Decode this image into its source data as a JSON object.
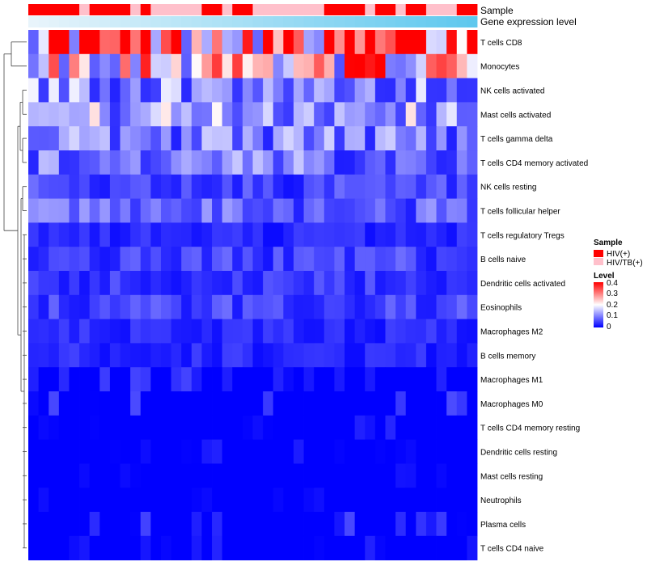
{
  "chart_data": {
    "type": "heatmap",
    "title": "",
    "annotation_labels": {
      "sample": "Sample",
      "gene": "Gene expression level"
    },
    "rows": [
      "T cells CD8",
      "Monocytes",
      "NK cells activated",
      "Mast cells activated",
      "T cells gamma delta",
      "T cells CD4 memory activated",
      "NK cells resting",
      "T cells follicular helper",
      "T cells regulatory  Tregs",
      "B cells naive",
      "Dendritic cells activated",
      "Eosinophils",
      "Macrophages M2",
      "B cells memory",
      "Macrophages M1",
      "Macrophages M0",
      "T cells CD4 memory resting",
      "Dendritic cells resting",
      "Mast cells resting",
      "Neutrophils",
      "Plasma cells",
      "T cells CD4 naive"
    ],
    "row_means": [
      0.3,
      0.25,
      0.11,
      0.13,
      0.1,
      0.09,
      0.05,
      0.07,
      0.03,
      0.05,
      0.04,
      0.05,
      0.03,
      0.03,
      0.02,
      0.02,
      0.01,
      0.01,
      0.005,
      0.005,
      0.02,
      0.01
    ],
    "n_samples": 44,
    "sample_groups": [
      "HIV(+)",
      "HIV(+)",
      "HIV(+)",
      "HIV(+)",
      "HIV(+)",
      "HIV/TB(+)",
      "HIV(+)",
      "HIV(+)",
      "HIV(+)",
      "HIV(+)",
      "HIV/TB(+)",
      "HIV(+)",
      "HIV/TB(+)",
      "HIV/TB(+)",
      "HIV/TB(+)",
      "HIV/TB(+)",
      "HIV/TB(+)",
      "HIV(+)",
      "HIV(+)",
      "HIV/TB(+)",
      "HIV(+)",
      "HIV(+)",
      "HIV/TB(+)",
      "HIV/TB(+)",
      "HIV/TB(+)",
      "HIV/TB(+)",
      "HIV/TB(+)",
      "HIV/TB(+)",
      "HIV/TB(+)",
      "HIV(+)",
      "HIV(+)",
      "HIV(+)",
      "HIV(+)",
      "HIV/TB(+)",
      "HIV(+)",
      "HIV(+)",
      "HIV/TB(+)",
      "HIV(+)",
      "HIV(+)",
      "HIV/TB(+)",
      "HIV/TB(+)",
      "HIV/TB(+)",
      "HIV(+)",
      "HIV(+)"
    ],
    "legend": {
      "sample_title": "Sample",
      "sample_items": [
        {
          "label": "HIV(+)",
          "color": "#ff0000"
        },
        {
          "label": "HIV/TB(+)",
          "color": "#ffc0cb"
        }
      ],
      "level_title": "Level",
      "level_ticks": [
        "0.4",
        "0.3",
        "0.2",
        "0.1",
        "0"
      ],
      "level_range": [
        0,
        0.4
      ]
    },
    "colors": {
      "low": "#0000ff",
      "mid": "#ffffff",
      "high": "#ff0000",
      "gene_bar_start": "#e8f4fb",
      "gene_bar_end": "#5ec8ee"
    },
    "dendrogram": "hierarchical clustering of rows"
  }
}
